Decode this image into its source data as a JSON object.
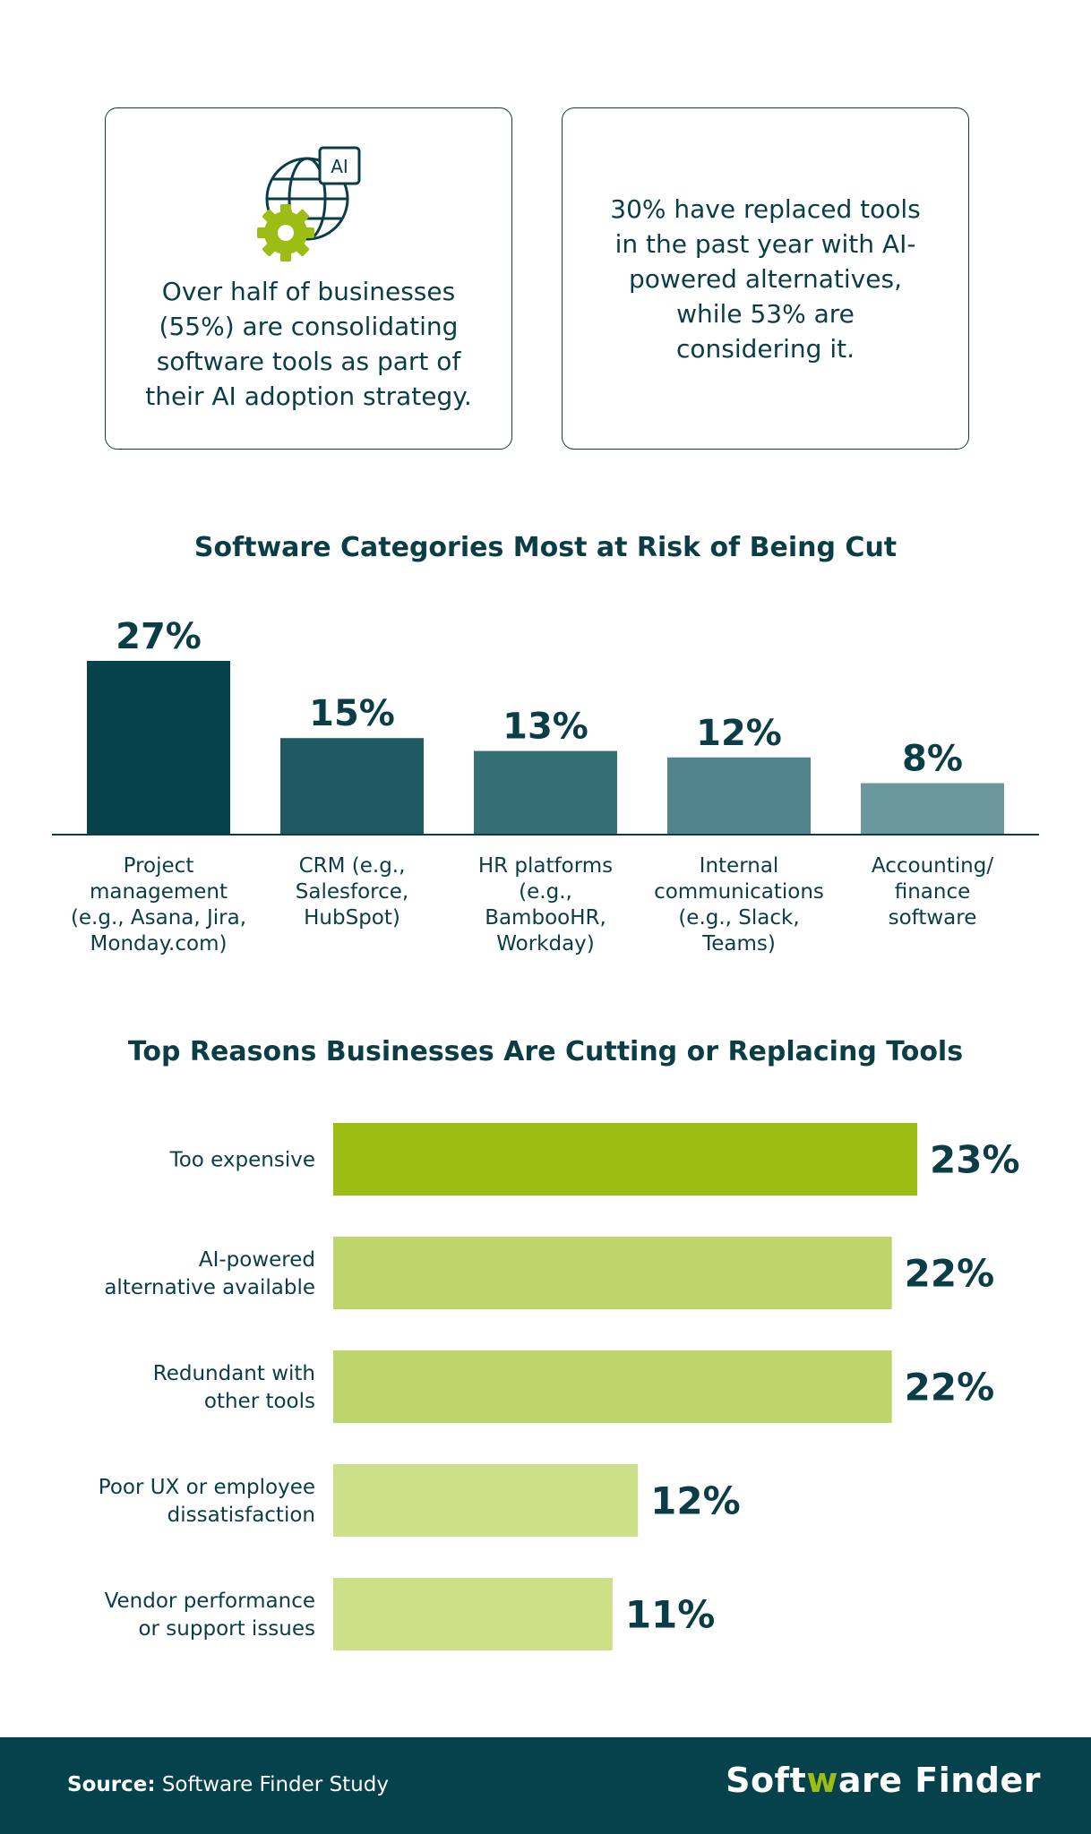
{
  "cards": {
    "left_text": "Over half of businesses (55%) are consolidating software tools as part of their AI adoption strategy.",
    "left_icon": "globe-ai-gear-icon",
    "left_icon_badge": "AI",
    "right_text": "30% have replaced tools in the past year with AI-powered alternatives, while 53% are considering it."
  },
  "colors": {
    "dark_teal": "#05424c",
    "lime_dark": "#9bbd14",
    "lime_mid": "#bdd56a",
    "lime_light": "#cbe088"
  },
  "chart_data": [
    {
      "type": "bar",
      "title": "Software Categories Most at Risk of Being Cut",
      "categories": [
        "Project management (e.g., Asana, Jira, Monday.com)",
        "CRM (e.g., Salesforce, HubSpot)",
        "HR platforms (e.g., BambooHR, Workday)",
        "Internal communications (e.g., Slack, Teams)",
        "Accounting/ finance software"
      ],
      "category_lines": [
        [
          "Project",
          "management",
          "(e.g., Asana, Jira,",
          "Monday.com)"
        ],
        [
          "CRM (e.g.,",
          "Salesforce,",
          "HubSpot)"
        ],
        [
          "HR platforms",
          "(e.g.,",
          "BambooHR,",
          "Workday)"
        ],
        [
          "Internal",
          "communications",
          "(e.g., Slack,",
          "Teams)"
        ],
        [
          "Accounting/",
          "finance",
          "software"
        ]
      ],
      "values": [
        27,
        15,
        13,
        12,
        8
      ],
      "value_labels": [
        "27%",
        "15%",
        "13%",
        "12%",
        "8%"
      ],
      "bar_colors": [
        "#05424c",
        "#1f5962",
        "#366e76",
        "#51838a",
        "#6b989d"
      ],
      "ylim": [
        0,
        27
      ]
    },
    {
      "type": "bar",
      "orientation": "horizontal",
      "title": "Top Reasons Businesses Are Cutting or Replacing Tools",
      "categories": [
        "Too expensive",
        "AI-powered alternative available",
        "Redundant with other tools",
        "Poor UX or employee dissatisfaction",
        "Vendor performance or support issues"
      ],
      "category_lines": [
        [
          "Too expensive"
        ],
        [
          "AI-powered",
          "alternative available"
        ],
        [
          "Redundant with",
          "other tools"
        ],
        [
          "Poor UX or employee",
          "dissatisfaction"
        ],
        [
          "Vendor performance",
          "or support issues"
        ]
      ],
      "values": [
        23,
        22,
        22,
        12,
        11
      ],
      "value_labels": [
        "23%",
        "22%",
        "22%",
        "12%",
        "11%"
      ],
      "bar_colors": [
        "#9bbd14",
        "#bdd56a",
        "#bdd56a",
        "#cbe088",
        "#cbe088"
      ],
      "xlim": [
        0,
        23
      ]
    }
  ],
  "footer": {
    "source_label": "Source:",
    "source_text": " Software Finder Study",
    "brand_part1": "Soft",
    "brand_accent": "w",
    "brand_part2": "are Finder"
  }
}
